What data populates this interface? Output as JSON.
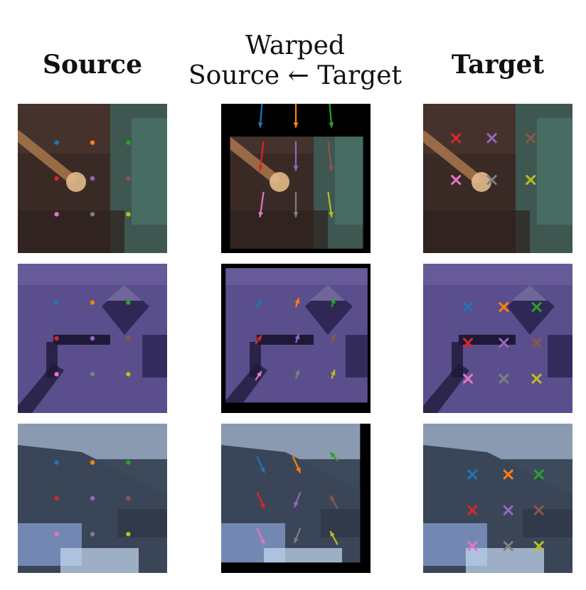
{
  "headers": {
    "source": "Source",
    "warped_line1": "Warped",
    "warped_line2": "Source ← Target",
    "target": "Target"
  },
  "point_colors": [
    "#1f77b4",
    "#ff7f0e",
    "#2ca02c",
    "#d62728",
    "#9467bd",
    "#8c564b",
    "#e377c2",
    "#7f7f7f",
    "#bcbd22"
  ],
  "rows": [
    {
      "name": "brown-scene",
      "background": "#3a2a26",
      "target_shift": [
        -0.12,
        -0.32
      ],
      "warp_frame": {
        "l": 0.06,
        "t": 0.22,
        "r": 0.95,
        "b": 0.97
      }
    },
    {
      "name": "purple-scene",
      "background": "#5a4e8c",
      "target_shift": [
        0.08,
        0.06
      ],
      "warp_frame": {
        "l": 0.03,
        "t": 0.03,
        "r": 0.98,
        "b": 0.93
      }
    },
    {
      "name": "blue-scene",
      "background": "#3c4a5c",
      "target_shift": [
        0.17,
        0.12
      ],
      "warp_frame": {
        "l": 0.0,
        "t": 0.0,
        "r": 0.93,
        "b": 0.93
      }
    }
  ]
}
